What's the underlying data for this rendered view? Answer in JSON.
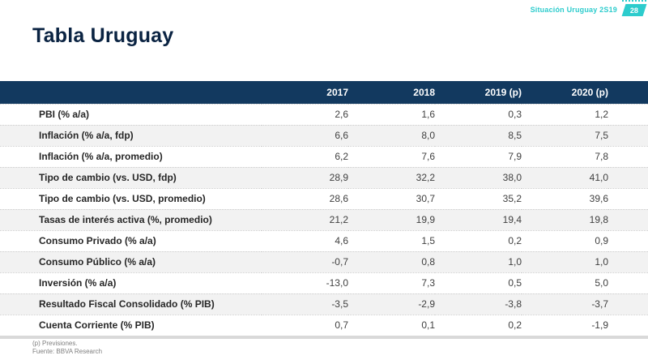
{
  "header": {
    "breadcrumb": "Situación Uruguay 2S19",
    "page_number": "28"
  },
  "title": "Tabla Uruguay",
  "colors": {
    "accent_teal": "#2dcccd",
    "header_navy": "#12395f",
    "title_navy": "#0a2342",
    "stripe_gray": "#f2f2f2"
  },
  "table": {
    "columns": [
      "2017",
      "2018",
      "2019 (p)",
      "2020 (p)"
    ],
    "rows": [
      {
        "label": "PBI (% a/a)",
        "values": [
          "2,6",
          "1,6",
          "0,3",
          "1,2"
        ]
      },
      {
        "label": "Inflación (% a/a, fdp)",
        "values": [
          "6,6",
          "8,0",
          "8,5",
          "7,5"
        ]
      },
      {
        "label": "Inflación (% a/a, promedio)",
        "values": [
          "6,2",
          "7,6",
          "7,9",
          "7,8"
        ]
      },
      {
        "label": "Tipo de cambio (vs. USD, fdp)",
        "values": [
          "28,9",
          "32,2",
          "38,0",
          "41,0"
        ]
      },
      {
        "label": "Tipo de cambio (vs. USD, promedio)",
        "values": [
          "28,6",
          "30,7",
          "35,2",
          "39,6"
        ]
      },
      {
        "label": "Tasas de interés activa (%, promedio)",
        "values": [
          "21,2",
          "19,9",
          "19,4",
          "19,8"
        ]
      },
      {
        "label": "Consumo Privado (% a/a)",
        "values": [
          "4,6",
          "1,5",
          "0,2",
          "0,9"
        ]
      },
      {
        "label": "Consumo Público (% a/a)",
        "values": [
          "-0,7",
          "0,8",
          "1,0",
          "1,0"
        ]
      },
      {
        "label": "Inversión (% a/a)",
        "values": [
          "-13,0",
          "7,3",
          "0,5",
          "5,0"
        ]
      },
      {
        "label": "Resultado Fiscal Consolidado (% PIB)",
        "values": [
          "-3,5",
          "-2,9",
          "-3,8",
          "-3,7"
        ]
      },
      {
        "label": "Cuenta Corriente (% PIB)",
        "values": [
          "0,7",
          "0,1",
          "0,2",
          "-1,9"
        ]
      }
    ]
  },
  "footnotes": {
    "line1": "(p) Previsiones.",
    "line2": "Fuente: BBVA Research"
  }
}
